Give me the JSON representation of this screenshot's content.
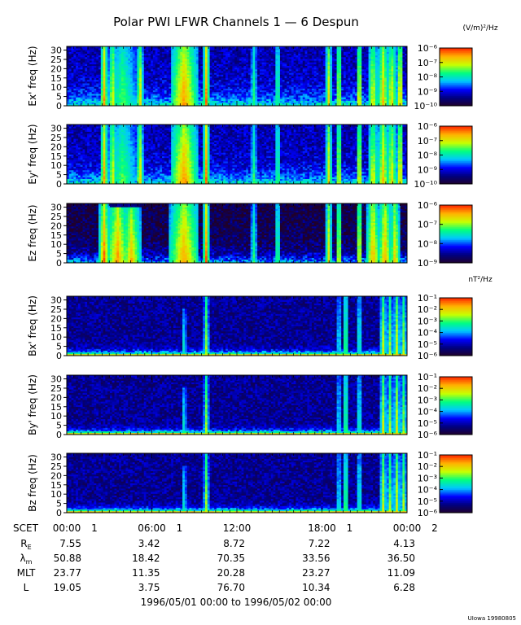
{
  "title": "Polar PWI LFWR Channels 1 — 6 Despun",
  "colors": {
    "background": "#ffffff",
    "text": "#000000",
    "spectrogram_scale": [
      "#20002a",
      "#000080",
      "#0000ff",
      "#00c8ff",
      "#00ff80",
      "#c8ff00",
      "#ffb400",
      "#ff2800"
    ]
  },
  "chart_data": [
    {
      "type": "heatmap",
      "channel": "Ex'",
      "ylabel": "Ex' freq (Hz)",
      "yticks": [
        "0",
        "5",
        "10",
        "15",
        "20",
        "25",
        "30"
      ],
      "ylim": [
        0,
        32
      ],
      "colorbar_unit": "(V/m)²/Hz",
      "colorbar_labels": [
        "10⁻⁶",
        "10⁻⁷",
        "10⁻⁸",
        "10⁻⁹",
        "10⁻¹⁰"
      ],
      "colorbar_range_exp": [
        -10,
        -6
      ],
      "floor": 0.32,
      "background": 0.2,
      "decay": 0.018,
      "noise": 0.1,
      "bursts": [
        {
          "t": 0.11,
          "w": 0.006,
          "h": 32,
          "i": 0.9
        },
        {
          "t": 0.135,
          "w": 0.008,
          "h": 32,
          "i": 0.8
        },
        {
          "t": 0.165,
          "w": 0.04,
          "h": 32,
          "i": 0.65
        },
        {
          "t": 0.215,
          "w": 0.005,
          "h": 32,
          "i": 0.85
        },
        {
          "t": 0.345,
          "w": 0.035,
          "h": 32,
          "i": 0.92
        },
        {
          "t": 0.41,
          "w": 0.004,
          "h": 32,
          "i": 0.95
        },
        {
          "t": 0.55,
          "w": 0.006,
          "h": 32,
          "i": 0.6
        },
        {
          "t": 0.62,
          "w": 0.006,
          "h": 32,
          "i": 0.65
        },
        {
          "t": 0.77,
          "w": 0.005,
          "h": 32,
          "i": 0.8
        },
        {
          "t": 0.8,
          "w": 0.006,
          "h": 32,
          "i": 0.8
        },
        {
          "t": 0.86,
          "w": 0.005,
          "h": 32,
          "i": 0.85
        },
        {
          "t": 0.9,
          "w": 0.01,
          "h": 32,
          "i": 0.8
        },
        {
          "t": 0.93,
          "w": 0.012,
          "h": 32,
          "i": 0.85
        },
        {
          "t": 0.955,
          "w": 0.012,
          "h": 32,
          "i": 0.8
        },
        {
          "t": 0.98,
          "w": 0.005,
          "h": 32,
          "i": 0.9
        }
      ]
    },
    {
      "type": "heatmap",
      "channel": "Ey'",
      "ylabel": "Ey' freq (Hz)",
      "yticks": [
        "0",
        "5",
        "10",
        "15",
        "20",
        "25",
        "30"
      ],
      "ylim": [
        0,
        32
      ],
      "colorbar_unit": "",
      "colorbar_labels": [
        "10⁻⁶",
        "10⁻⁷",
        "10⁻⁸",
        "10⁻⁹",
        "10⁻¹⁰"
      ],
      "colorbar_range_exp": [
        -10,
        -6
      ],
      "floor": 0.32,
      "background": 0.2,
      "decay": 0.018,
      "noise": 0.1,
      "bursts": [
        {
          "t": 0.11,
          "w": 0.006,
          "h": 32,
          "i": 0.9
        },
        {
          "t": 0.135,
          "w": 0.008,
          "h": 32,
          "i": 0.8
        },
        {
          "t": 0.165,
          "w": 0.04,
          "h": 32,
          "i": 0.65
        },
        {
          "t": 0.215,
          "w": 0.005,
          "h": 32,
          "i": 0.85
        },
        {
          "t": 0.345,
          "w": 0.035,
          "h": 32,
          "i": 0.92
        },
        {
          "t": 0.41,
          "w": 0.004,
          "h": 32,
          "i": 0.95
        },
        {
          "t": 0.55,
          "w": 0.006,
          "h": 32,
          "i": 0.6
        },
        {
          "t": 0.62,
          "w": 0.006,
          "h": 32,
          "i": 0.65
        },
        {
          "t": 0.77,
          "w": 0.005,
          "h": 32,
          "i": 0.8
        },
        {
          "t": 0.8,
          "w": 0.006,
          "h": 32,
          "i": 0.8
        },
        {
          "t": 0.86,
          "w": 0.005,
          "h": 32,
          "i": 0.85
        },
        {
          "t": 0.9,
          "w": 0.01,
          "h": 32,
          "i": 0.8
        },
        {
          "t": 0.93,
          "w": 0.012,
          "h": 32,
          "i": 0.85
        },
        {
          "t": 0.955,
          "w": 0.012,
          "h": 32,
          "i": 0.8
        },
        {
          "t": 0.98,
          "w": 0.005,
          "h": 32,
          "i": 0.9
        }
      ]
    },
    {
      "type": "heatmap",
      "channel": "Ez",
      "ylabel": "Ez freq (Hz)",
      "yticks": [
        "0",
        "5",
        "10",
        "15",
        "20",
        "25",
        "30"
      ],
      "ylim": [
        0,
        32
      ],
      "colorbar_unit": "",
      "colorbar_labels": [
        "10⁻⁶",
        "10⁻⁷",
        "10⁻⁸",
        "10⁻⁹"
      ],
      "colorbar_range_exp": [
        -9,
        -6
      ],
      "floor": 0.4,
      "background": 0.05,
      "decay": 0.02,
      "noise": 0.12,
      "bursts": [
        {
          "t": 0.11,
          "w": 0.01,
          "h": 32,
          "i": 0.95
        },
        {
          "t": 0.15,
          "w": 0.03,
          "h": 30,
          "i": 0.9
        },
        {
          "t": 0.19,
          "w": 0.025,
          "h": 30,
          "i": 0.85
        },
        {
          "t": 0.345,
          "w": 0.04,
          "h": 32,
          "i": 0.9
        },
        {
          "t": 0.41,
          "w": 0.004,
          "h": 32,
          "i": 0.95
        },
        {
          "t": 0.55,
          "w": 0.006,
          "h": 32,
          "i": 0.6
        },
        {
          "t": 0.62,
          "w": 0.006,
          "h": 32,
          "i": 0.65
        },
        {
          "t": 0.77,
          "w": 0.005,
          "h": 32,
          "i": 0.8
        },
        {
          "t": 0.8,
          "w": 0.006,
          "h": 32,
          "i": 0.8
        },
        {
          "t": 0.86,
          "w": 0.005,
          "h": 32,
          "i": 0.85
        },
        {
          "t": 0.9,
          "w": 0.015,
          "h": 32,
          "i": 0.9
        },
        {
          "t": 0.935,
          "w": 0.015,
          "h": 32,
          "i": 0.9
        },
        {
          "t": 0.965,
          "w": 0.01,
          "h": 32,
          "i": 0.85
        }
      ]
    },
    {
      "type": "heatmap",
      "channel": "Bx'",
      "ylabel": "Bx' freq (Hz)",
      "yticks": [
        "0",
        "5",
        "10",
        "15",
        "20",
        "25",
        "30"
      ],
      "ylim": [
        0,
        32
      ],
      "colorbar_unit": "nT²/Hz",
      "colorbar_labels": [
        "10⁻¹",
        "10⁻²",
        "10⁻³",
        "10⁻⁴",
        "10⁻⁵",
        "10⁻⁶"
      ],
      "colorbar_range_exp": [
        -6,
        -1
      ],
      "floor": 0.85,
      "background": 0.16,
      "decay": 0.065,
      "noise": 0.09,
      "bursts": [
        {
          "t": 0.345,
          "w": 0.004,
          "h": 25,
          "i": 0.55
        },
        {
          "t": 0.41,
          "w": 0.003,
          "h": 32,
          "i": 0.7
        },
        {
          "t": 0.8,
          "w": 0.004,
          "h": 32,
          "i": 0.55
        },
        {
          "t": 0.82,
          "w": 0.004,
          "h": 32,
          "i": 0.7
        },
        {
          "t": 0.86,
          "w": 0.004,
          "h": 32,
          "i": 0.6
        },
        {
          "t": 0.93,
          "w": 0.004,
          "h": 32,
          "i": 0.75
        },
        {
          "t": 0.95,
          "w": 0.004,
          "h": 32,
          "i": 0.7
        },
        {
          "t": 0.97,
          "w": 0.004,
          "h": 32,
          "i": 0.75
        },
        {
          "t": 0.99,
          "w": 0.004,
          "h": 32,
          "i": 0.7
        }
      ]
    },
    {
      "type": "heatmap",
      "channel": "By'",
      "ylabel": "By' freq (Hz)",
      "yticks": [
        "0",
        "5",
        "10",
        "15",
        "20",
        "25",
        "30"
      ],
      "ylim": [
        0,
        32
      ],
      "colorbar_unit": "",
      "colorbar_labels": [
        "10⁻¹",
        "10⁻²",
        "10⁻³",
        "10⁻⁴",
        "10⁻⁵",
        "10⁻⁶"
      ],
      "colorbar_range_exp": [
        -6,
        -1
      ],
      "floor": 0.85,
      "background": 0.16,
      "decay": 0.065,
      "noise": 0.09,
      "bursts": [
        {
          "t": 0.345,
          "w": 0.004,
          "h": 25,
          "i": 0.55
        },
        {
          "t": 0.41,
          "w": 0.003,
          "h": 32,
          "i": 0.7
        },
        {
          "t": 0.8,
          "w": 0.004,
          "h": 32,
          "i": 0.55
        },
        {
          "t": 0.82,
          "w": 0.004,
          "h": 32,
          "i": 0.7
        },
        {
          "t": 0.86,
          "w": 0.004,
          "h": 32,
          "i": 0.6
        },
        {
          "t": 0.93,
          "w": 0.004,
          "h": 32,
          "i": 0.75
        },
        {
          "t": 0.95,
          "w": 0.004,
          "h": 32,
          "i": 0.7
        },
        {
          "t": 0.97,
          "w": 0.004,
          "h": 32,
          "i": 0.75
        },
        {
          "t": 0.99,
          "w": 0.004,
          "h": 32,
          "i": 0.7
        }
      ]
    },
    {
      "type": "heatmap",
      "channel": "Bz",
      "ylabel": "Bz freq (Hz)",
      "yticks": [
        "0",
        "5",
        "10",
        "15",
        "20",
        "25",
        "30"
      ],
      "ylim": [
        0,
        32
      ],
      "colorbar_unit": "",
      "colorbar_labels": [
        "10⁻¹",
        "10⁻²",
        "10⁻³",
        "10⁻⁴",
        "10⁻⁵",
        "10⁻⁶"
      ],
      "colorbar_range_exp": [
        -6,
        -1
      ],
      "floor": 0.85,
      "background": 0.16,
      "decay": 0.065,
      "noise": 0.09,
      "bursts": [
        {
          "t": 0.345,
          "w": 0.004,
          "h": 25,
          "i": 0.55
        },
        {
          "t": 0.41,
          "w": 0.003,
          "h": 32,
          "i": 0.7
        },
        {
          "t": 0.8,
          "w": 0.004,
          "h": 32,
          "i": 0.55
        },
        {
          "t": 0.82,
          "w": 0.004,
          "h": 32,
          "i": 0.7
        },
        {
          "t": 0.86,
          "w": 0.004,
          "h": 32,
          "i": 0.6
        },
        {
          "t": 0.93,
          "w": 0.004,
          "h": 32,
          "i": 0.75
        },
        {
          "t": 0.95,
          "w": 0.004,
          "h": 32,
          "i": 0.7
        },
        {
          "t": 0.97,
          "w": 0.004,
          "h": 32,
          "i": 0.75
        },
        {
          "t": 0.99,
          "w": 0.004,
          "h": 32,
          "i": 0.7
        }
      ]
    }
  ],
  "time_axis": {
    "label": "SCET",
    "ticks": [
      {
        "hour": 0,
        "text": "00:00",
        "day": "1"
      },
      {
        "hour": 6,
        "text": "06:00",
        "day": "1"
      },
      {
        "hour": 12,
        "text": "12:00",
        "day": ""
      },
      {
        "hour": 18,
        "text": "18:00",
        "day": "1"
      },
      {
        "hour": 24,
        "text": "00:00",
        "day": "2"
      }
    ]
  },
  "ephemeris": [
    {
      "label": "R",
      "sub": "E",
      "values": [
        "7.55",
        "3.42",
        "8.72",
        "7.22",
        "4.13"
      ]
    },
    {
      "label": "λ",
      "sub": "m",
      "values": [
        "50.88",
        "18.42",
        "70.35",
        "33.56",
        "36.50"
      ]
    },
    {
      "label": "MLT",
      "sub": "",
      "values": [
        "23.77",
        "11.35",
        "20.28",
        "23.27",
        "11.09"
      ]
    },
    {
      "label": "L",
      "sub": "",
      "values": [
        "19.05",
        "3.75",
        "76.70",
        "10.34",
        "6.28"
      ]
    }
  ],
  "date_range": "1996/05/01 00:00 to 1996/05/02 00:00",
  "footer": "UIowa 19980805"
}
